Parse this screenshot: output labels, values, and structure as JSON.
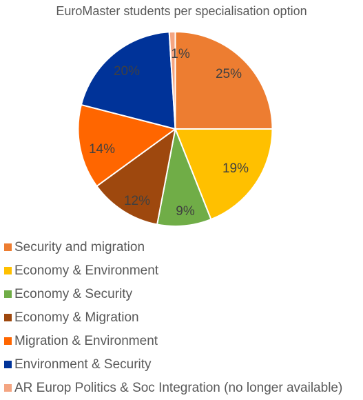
{
  "chart_data": {
    "type": "pie",
    "title": "EuroMaster students per specialisation option",
    "legend_position": "bottom",
    "slices": [
      {
        "label": "Security and migration",
        "value": 25,
        "value_label": "25%",
        "color": "#ED7D31"
      },
      {
        "label": "Economy & Environment",
        "value": 19,
        "value_label": "19%",
        "color": "#FFC000"
      },
      {
        "label": "Economy & Security",
        "value": 9,
        "value_label": "9%",
        "color": "#70AD47"
      },
      {
        "label": "Economy & Migration",
        "value": 12,
        "value_label": "12%",
        "color": "#9E480E"
      },
      {
        "label": "Migration & Environment",
        "value": 14,
        "value_label": "14%",
        "color": "#FF6600"
      },
      {
        "label": "Environment & Security",
        "value": 20,
        "value_label": "20%",
        "color": "#003399"
      },
      {
        "label": "AR Europ Politics & Soc Integration (no longer available)",
        "value": 1,
        "value_label": "1%",
        "color": "#F4A582"
      }
    ]
  }
}
